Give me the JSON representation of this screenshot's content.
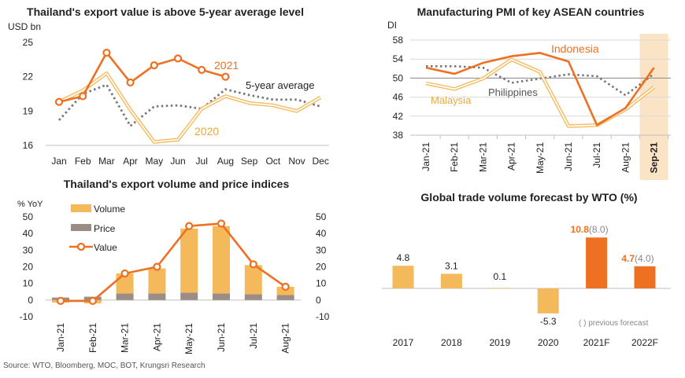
{
  "source": "Source: WTO, Bloomberg, MOC, BOT, Krungsri Research",
  "colors": {
    "orange": "#EE7022",
    "light_orange": "#F4B95A",
    "gray": "#9B8D86",
    "dark_gray": "#777777",
    "axis": "#BFBFBF",
    "highlight": "#FBE3C6"
  },
  "chart_data": [
    {
      "id": "export_value",
      "type": "line",
      "title": "Thailand's export value is above 5-year average level",
      "ylabel": "USD bn",
      "ylim": [
        16,
        25
      ],
      "yticks": [
        "16",
        "19",
        "22",
        "25"
      ],
      "categories": [
        "Jan",
        "Feb",
        "Mar",
        "Apr",
        "May",
        "Jun",
        "Jul",
        "Aug",
        "Sep",
        "Oct",
        "Nov",
        "Dec"
      ],
      "series": [
        {
          "name": "2021",
          "color": "#EE7022",
          "values": [
            19.8,
            20.3,
            24.1,
            21.5,
            23.0,
            23.6,
            22.6,
            22.0,
            null,
            null,
            null,
            null
          ]
        },
        {
          "name": "2020",
          "color": "#F4B95A",
          "values": [
            19.8,
            20.8,
            22.3,
            19.1,
            16.3,
            16.5,
            19.2,
            20.3,
            19.7,
            19.5,
            19.0,
            20.2
          ]
        },
        {
          "name": "5-year average",
          "color": "#777777",
          "values": [
            18.2,
            20.5,
            21.3,
            17.7,
            19.4,
            19.5,
            19.2,
            20.9,
            20.4,
            20.0,
            20.0,
            19.4
          ]
        }
      ]
    },
    {
      "id": "pmi",
      "type": "line",
      "title": "Manufacturing PMI of key ASEAN countries",
      "ylabel": "DI",
      "ylim": [
        38,
        58
      ],
      "yticks": [
        "38",
        "42",
        "46",
        "50",
        "54",
        "58"
      ],
      "reference_line": 50,
      "highlight_category": "Sep-21",
      "categories": [
        "Jan-21",
        "Feb-21",
        "Mar-21",
        "Apr-21",
        "May-21",
        "Jun-21",
        "Jul-21",
        "Aug-21",
        "Sep-21"
      ],
      "series": [
        {
          "name": "Indonesia",
          "color": "#EE7022",
          "values": [
            52.2,
            50.9,
            53.2,
            54.6,
            55.3,
            53.5,
            40.1,
            43.7,
            52.2
          ]
        },
        {
          "name": "Malaysia",
          "color": "#F4B95A",
          "values": [
            48.9,
            47.7,
            49.9,
            53.9,
            51.3,
            39.9,
            40.1,
            43.4,
            48.1
          ]
        },
        {
          "name": "Philippines",
          "color": "#777777",
          "values": [
            52.5,
            52.5,
            52.2,
            49.0,
            49.9,
            50.8,
            50.4,
            46.4,
            50.9
          ]
        }
      ]
    },
    {
      "id": "volume_price",
      "type": "bar",
      "title": "Thailand's export volume and price indices",
      "ylabel": "% YoY",
      "ylim": [
        -10,
        50
      ],
      "yticks": [
        "-10",
        "0",
        "10",
        "20",
        "30",
        "40",
        "50"
      ],
      "categories": [
        "Jan-21",
        "Feb-21",
        "Mar-21",
        "Apr-21",
        "May-21",
        "Jun-21",
        "Jul-21",
        "Aug-21"
      ],
      "series": [
        {
          "name": "Volume",
          "color": "#F4B95A",
          "values": [
            -1.5,
            -2.0,
            12.0,
            15.0,
            38.5,
            40.5,
            17.5,
            5.0
          ]
        },
        {
          "name": "Price",
          "color": "#9B8D86",
          "values": [
            1.5,
            2.0,
            4.0,
            4.0,
            4.5,
            4.0,
            3.5,
            3.0
          ]
        },
        {
          "name": "Value",
          "color": "#EE7022",
          "values": [
            -0.5,
            -0.5,
            16.0,
            20.0,
            44.5,
            46.0,
            21.5,
            8.0
          ]
        }
      ]
    },
    {
      "id": "wto",
      "type": "bar",
      "title": "Global trade volume forecast by WTO (%)",
      "categories": [
        "2017",
        "2018",
        "2019",
        "2020",
        "2021F",
        "2022F"
      ],
      "values": [
        4.8,
        3.1,
        0.1,
        -5.3,
        10.8,
        4.7
      ],
      "labels": [
        "4.8",
        "3.1",
        "0.1",
        "-5.3",
        "10.8",
        "4.7"
      ],
      "previous_labels": [
        "",
        "",
        "",
        "",
        "(8.0)",
        "(4.0)"
      ],
      "note": "( ) previous forecast"
    }
  ]
}
